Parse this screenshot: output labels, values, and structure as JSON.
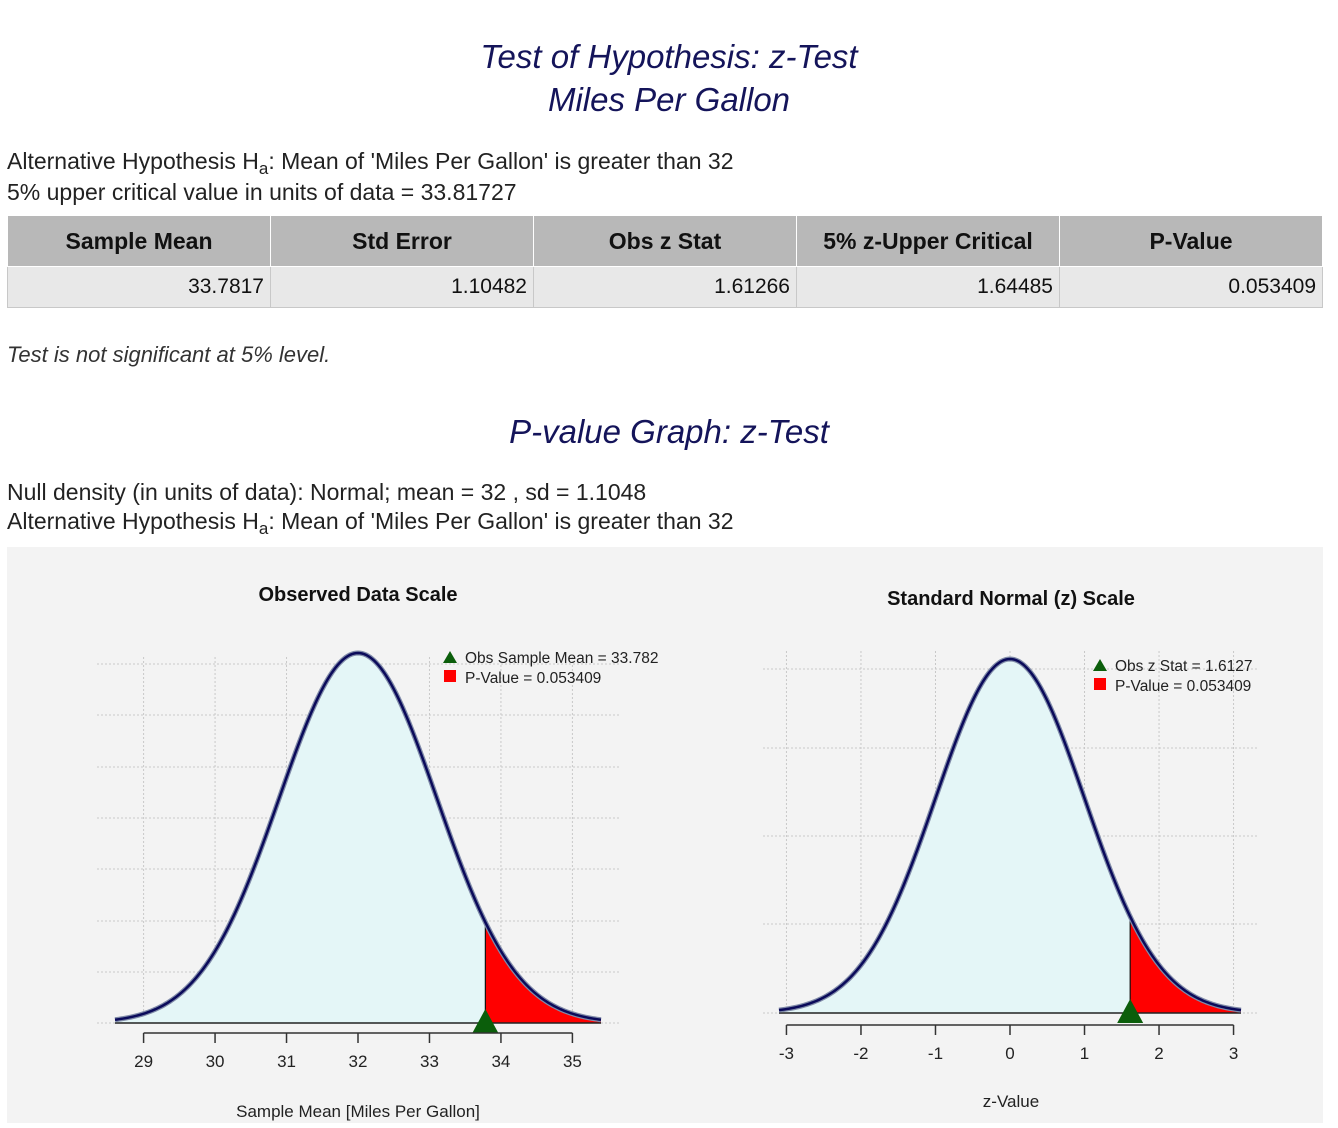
{
  "header": {
    "title_line1": "Test of Hypothesis: z-Test",
    "title_line2": "Miles Per Gallon"
  },
  "hypothesis": {
    "prefix": "Alternative Hypothesis H",
    "sub": "a",
    "rest": ": Mean of 'Miles Per Gallon' is greater than 32",
    "critical_value_text": "5% upper critical value in units of data = 33.81727"
  },
  "results_table": {
    "headers": [
      "Sample Mean",
      "Std Error",
      "Obs z Stat",
      "5% z-Upper Critical",
      "P-Value"
    ],
    "row": [
      "33.7817",
      "1.10482",
      "1.61266",
      "1.64485",
      "0.053409"
    ]
  },
  "conclusion": "Test is not significant at 5% level.",
  "graph_section": {
    "title": "P-value Graph: z-Test",
    "null_density": "Null density (in units of data): Normal; mean = 32 , sd = 1.1048"
  },
  "colors": {
    "curve": "#0a0a5a",
    "fill": "#e4f6f7",
    "tail": "#ff0000",
    "marker": "#0b5e0b",
    "title": "#14145a"
  },
  "chart_data": [
    {
      "type": "area",
      "title": "Observed Data Scale",
      "xlabel": "Sample Mean [Miles Per Gallon]",
      "ylabel": "",
      "distribution": "normal",
      "mean": 32,
      "sd": 1.1048,
      "xlim": [
        28.6,
        35.4
      ],
      "xticks": [
        29,
        30,
        31,
        32,
        33,
        34,
        35
      ],
      "xtick_labels": [
        "29",
        "30",
        "31",
        "32",
        "33",
        "34",
        "35"
      ],
      "observed": 33.782,
      "tail_from": 33.782,
      "grid": true,
      "legend": [
        "Obs Sample Mean = 33.782",
        "P-Value = 0.053409"
      ],
      "legend_position": "top-right"
    },
    {
      "type": "area",
      "title": "Standard Normal (z) Scale",
      "xlabel": "z-Value",
      "ylabel": "",
      "distribution": "normal",
      "mean": 0,
      "sd": 1,
      "xlim": [
        -3.1,
        3.1
      ],
      "xticks": [
        -3,
        -2,
        -1,
        0,
        1,
        2,
        3
      ],
      "xtick_labels": [
        "-3",
        "-2",
        "-1",
        "0",
        "1",
        "2",
        "3"
      ],
      "observed": 1.6127,
      "tail_from": 1.6127,
      "grid": true,
      "legend": [
        "Obs z Stat = 1.6127",
        "P-Value = 0.053409"
      ],
      "legend_position": "top-right"
    }
  ]
}
